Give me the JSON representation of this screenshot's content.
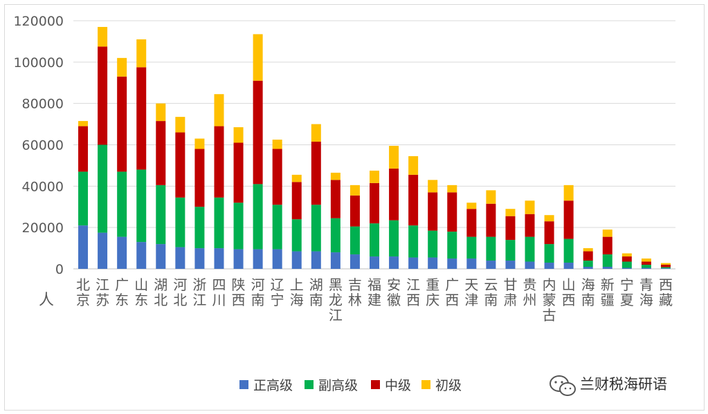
{
  "chart_data": {
    "type": "bar",
    "stacked": true,
    "unit_label": "人",
    "ylim": [
      0,
      120000
    ],
    "yticks": [
      0,
      20000,
      40000,
      60000,
      80000,
      100000,
      120000
    ],
    "grid": true,
    "legend_position": "bottom",
    "categories": [
      "北京",
      "江苏",
      "广东",
      "山东",
      "湖北",
      "河北",
      "浙江",
      "四川",
      "陕西",
      "河南",
      "辽宁",
      "上海",
      "湖南",
      "黑龙江",
      "吉林",
      "福建",
      "安徽",
      "江西",
      "重庆",
      "广西",
      "天津",
      "云南",
      "甘肃",
      "贵州",
      "内蒙古",
      "山西",
      "海南",
      "新疆",
      "宁夏",
      "青海",
      "西藏"
    ],
    "series": [
      {
        "name": "正高级",
        "color": "#4472C4",
        "values": [
          21000,
          17500,
          15500,
          13000,
          12000,
          10500,
          10000,
          10000,
          9500,
          9500,
          9500,
          8500,
          8500,
          8000,
          7000,
          6000,
          6000,
          5500,
          5500,
          5000,
          5000,
          4000,
          4000,
          3500,
          3000,
          3000,
          1000,
          1000,
          500,
          500,
          300
        ]
      },
      {
        "name": "副高级",
        "color": "#00B050",
        "values": [
          26000,
          42500,
          31500,
          35000,
          28500,
          24000,
          20000,
          24500,
          22500,
          31500,
          21500,
          15500,
          22500,
          16500,
          13500,
          16000,
          17500,
          15500,
          13000,
          13000,
          10500,
          11500,
          10000,
          12000,
          9000,
          11500,
          3000,
          6000,
          3000,
          1500,
          500
        ]
      },
      {
        "name": "中级",
        "color": "#C00000",
        "values": [
          22000,
          47500,
          46000,
          49500,
          31000,
          31500,
          28000,
          34500,
          29000,
          50000,
          27000,
          18000,
          30500,
          18500,
          15000,
          19500,
          25000,
          24500,
          18500,
          19000,
          13500,
          16000,
          11500,
          11000,
          11000,
          18500,
          4500,
          8500,
          2500,
          1500,
          1200
        ]
      },
      {
        "name": "初级",
        "color": "#FFC000",
        "values": [
          2500,
          9500,
          9000,
          13500,
          8500,
          7500,
          5000,
          15500,
          7500,
          22500,
          4500,
          3500,
          8500,
          3500,
          5000,
          6000,
          11000,
          9000,
          6000,
          3500,
          3000,
          6500,
          3500,
          6500,
          3000,
          7500,
          1500,
          3500,
          1500,
          1500,
          800
        ]
      }
    ]
  },
  "watermark": {
    "text": "兰财税海研语",
    "icon": "wechat-icon"
  }
}
